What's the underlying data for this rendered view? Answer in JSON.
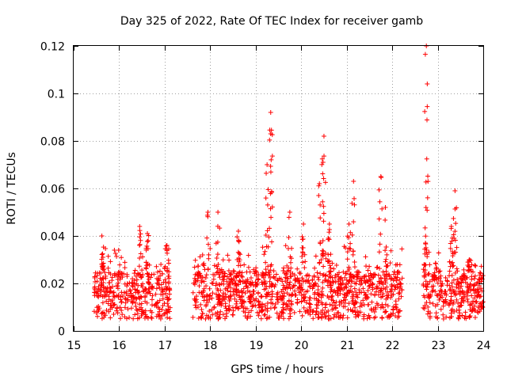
{
  "chart_data": {
    "type": "scatter",
    "title": "Day 325 of 2022, Rate Of TEC Index for receiver gamb",
    "xlabel": "GPS time / hours",
    "ylabel": "ROTI / TECUs",
    "xlim": [
      15,
      24
    ],
    "ylim": [
      0,
      0.12
    ],
    "xticks": [
      "15",
      "16",
      "17",
      "18",
      "19",
      "20",
      "21",
      "22",
      "23",
      "24"
    ],
    "yticks": [
      "0",
      "0.02",
      "0.04",
      "0.06",
      "0.08",
      "0.1",
      "0.12"
    ],
    "grid": true,
    "marker": "+",
    "color": "#ff0000",
    "data_segments": [
      {
        "start": 15.45,
        "end": 17.12
      },
      {
        "start": 17.62,
        "end": 22.22
      },
      {
        "start": 22.68,
        "end": 24.0
      }
    ],
    "base_band": {
      "low": 0.005,
      "typical": 0.014,
      "high": 0.025
    },
    "peaks": [
      {
        "x": 15.62,
        "y": 0.04
      },
      {
        "x": 16.45,
        "y": 0.044
      },
      {
        "x": 16.62,
        "y": 0.041
      },
      {
        "x": 17.05,
        "y": 0.036
      },
      {
        "x": 17.95,
        "y": 0.05
      },
      {
        "x": 18.17,
        "y": 0.05
      },
      {
        "x": 18.62,
        "y": 0.042
      },
      {
        "x": 19.25,
        "y": 0.07
      },
      {
        "x": 19.33,
        "y": 0.092
      },
      {
        "x": 19.33,
        "y": 0.083
      },
      {
        "x": 19.75,
        "y": 0.05
      },
      {
        "x": 20.05,
        "y": 0.045
      },
      {
        "x": 20.4,
        "y": 0.062
      },
      {
        "x": 20.5,
        "y": 0.082
      },
      {
        "x": 20.48,
        "y": 0.071
      },
      {
        "x": 20.62,
        "y": 0.045
      },
      {
        "x": 21.15,
        "y": 0.063
      },
      {
        "x": 21.05,
        "y": 0.045
      },
      {
        "x": 21.75,
        "y": 0.065
      },
      {
        "x": 21.85,
        "y": 0.052
      },
      {
        "x": 22.75,
        "y": 0.12
      },
      {
        "x": 22.77,
        "y": 0.104
      },
      {
        "x": 22.73,
        "y": 0.037
      },
      {
        "x": 23.38,
        "y": 0.059
      },
      {
        "x": 23.3,
        "y": 0.044
      },
      {
        "x": 23.7,
        "y": 0.03
      }
    ]
  }
}
